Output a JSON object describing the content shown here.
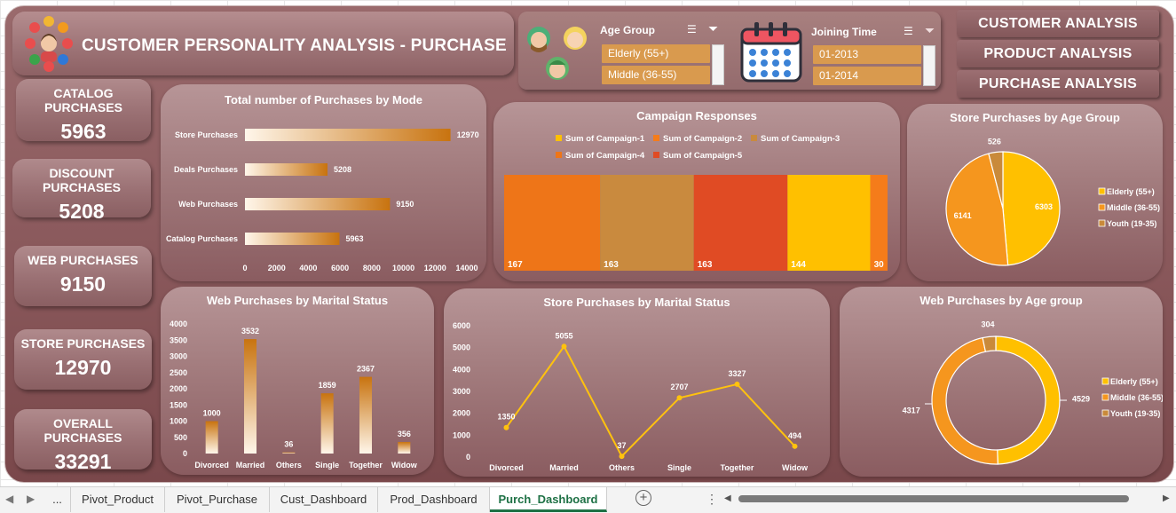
{
  "title": "CUSTOMER PERSONALITY ANALYSIS - PURCHASE",
  "nav": [
    "CUSTOMER ANALYSIS",
    "PRODUCT ANALYSIS",
    "PURCHASE ANALYSIS"
  ],
  "slicers": {
    "age": {
      "title": "Age Group",
      "items": [
        "Elderly (55+)",
        "Middle (36-55)"
      ]
    },
    "joining": {
      "title": "Joining Time",
      "items": [
        "01-2013",
        "01-2014"
      ]
    }
  },
  "kpis": [
    {
      "label": "CATALOG PURCHASES",
      "value": "5963"
    },
    {
      "label": "DISCOUNT PURCHASES",
      "value": "5208"
    },
    {
      "label": "WEB PURCHASES",
      "value": "9150"
    },
    {
      "label": "STORE PURCHASES",
      "value": "12970"
    },
    {
      "label": "OVERALL PURCHASES",
      "value": "33291"
    }
  ],
  "tabs": {
    "more": "...",
    "items": [
      "Pivot_Product",
      "Pivot_Purchase",
      "Cust_Dashboard",
      "Prod_Dashboard",
      "Purch_Dashboard"
    ],
    "active": "Purch_Dashboard"
  },
  "colors": {
    "elderly": "#ffc000",
    "middle": "#f5961e",
    "youth": "#c98a3a",
    "bar": "#c8730f",
    "line": "#ffc20e",
    "camp1": "#ffc000",
    "camp2": "#f57c1a",
    "camp3": "#c98a3e",
    "camp4": "#ee7518",
    "camp5": "#e04b24"
  },
  "chart_data": [
    {
      "id": "mode",
      "type": "bar",
      "title": "Total number of Purchases by Mode",
      "categories": [
        "Store Purchases",
        "Deals Purchases",
        "Web Purchases",
        "Catalog Purchases"
      ],
      "values": [
        12970,
        5208,
        9150,
        5963
      ],
      "xlim": [
        0,
        14000
      ],
      "xticks": [
        0,
        2000,
        4000,
        6000,
        8000,
        10000,
        12000,
        14000
      ]
    },
    {
      "id": "campaign",
      "type": "bar",
      "title": "Campaign Responses",
      "legend": [
        "Sum of Campaign-1",
        "Sum of Campaign-2",
        "Sum of Campaign-3",
        "Sum of Campaign-4",
        "Sum of Campaign-5"
      ],
      "segments": [
        {
          "name": "Sum of Campaign-4",
          "value": 167
        },
        {
          "name": "Sum of Campaign-3",
          "value": 163
        },
        {
          "name": "Sum of Campaign-5",
          "value": 163
        },
        {
          "name": "Sum of Campaign-1",
          "value": 144
        },
        {
          "name": "Sum of Campaign-2",
          "value": 30
        }
      ]
    },
    {
      "id": "store_age",
      "type": "pie",
      "title": "Store Purchases by Age Group",
      "categories": [
        "Elderly (55+)",
        "Middle (36-55)",
        "Youth (19-35)"
      ],
      "values": [
        6303,
        6141,
        526
      ],
      "legend_position": "right"
    },
    {
      "id": "web_marital",
      "type": "bar",
      "title": "Web Purchases by Marital Status",
      "categories": [
        "Divorced",
        "Married",
        "Others",
        "Single",
        "Together",
        "Widow"
      ],
      "values": [
        1000,
        3532,
        36,
        1859,
        2367,
        356
      ],
      "ylim": [
        0,
        4000
      ],
      "yticks": [
        0,
        500,
        1000,
        1500,
        2000,
        2500,
        3000,
        3500,
        4000
      ]
    },
    {
      "id": "store_marital",
      "type": "line",
      "title": "Store Purchases by Marital Status",
      "categories": [
        "Divorced",
        "Married",
        "Others",
        "Single",
        "Together",
        "Widow"
      ],
      "values": [
        1350,
        5055,
        37,
        2707,
        3327,
        494
      ],
      "ylim": [
        0,
        6000
      ],
      "yticks": [
        0,
        1000,
        2000,
        3000,
        4000,
        5000,
        6000
      ]
    },
    {
      "id": "web_age",
      "type": "pie",
      "title": "Web Purchases by Age group",
      "categories": [
        "Elderly (55+)",
        "Middle (36-55)",
        "Youth (19-35)"
      ],
      "values": [
        4529,
        4317,
        304
      ],
      "legend_position": "right"
    }
  ]
}
